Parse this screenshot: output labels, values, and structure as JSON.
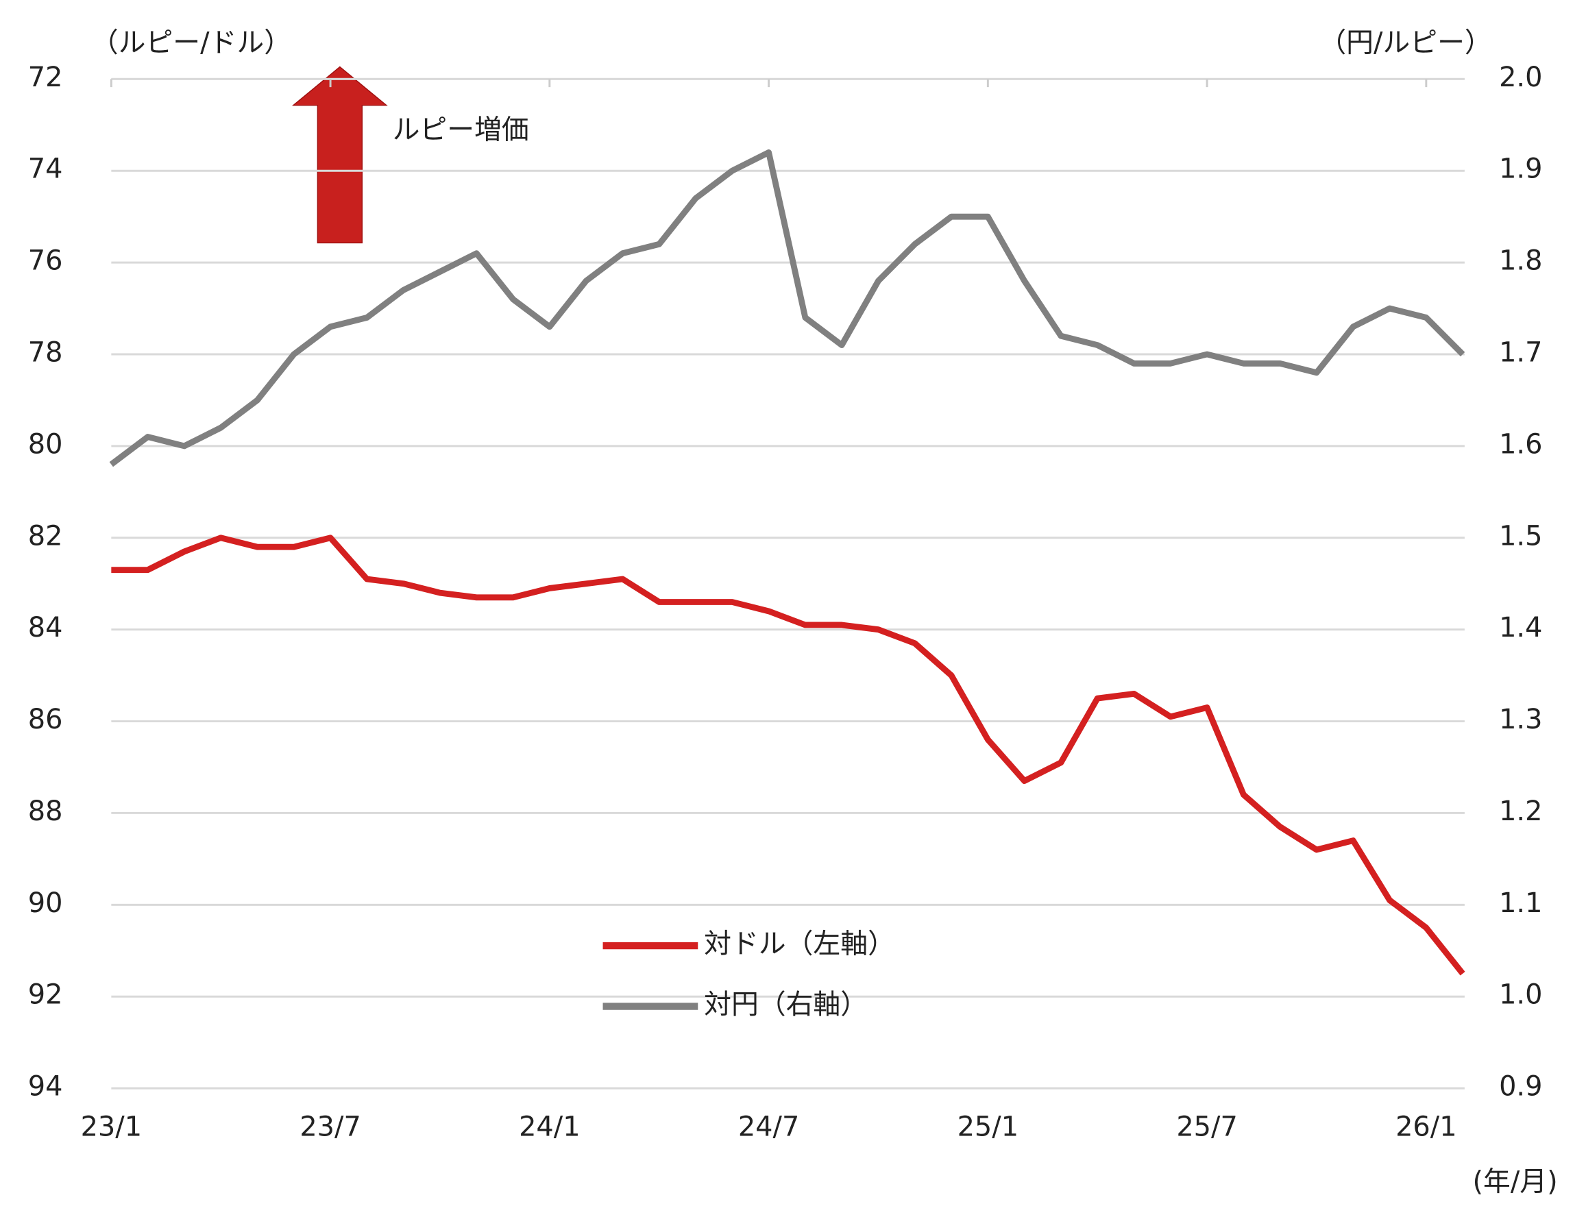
{
  "chart_data": {
    "type": "line",
    "y_label": "（ルピー/ドル）",
    "y2_label": "（円/ルピー）",
    "x_label": "(年/月)",
    "annotation": "ルピー増価",
    "x": [
      "23/1",
      "23/2",
      "23/3",
      "23/4",
      "23/5",
      "23/6",
      "23/7",
      "23/8",
      "23/9",
      "23/10",
      "23/11",
      "23/12",
      "24/1",
      "24/2",
      "24/3",
      "24/4",
      "24/5",
      "24/6",
      "24/7",
      "24/8",
      "24/9",
      "24/10",
      "24/11",
      "24/12",
      "25/1",
      "25/2",
      "25/3",
      "25/4",
      "25/5",
      "25/6",
      "25/7",
      "25/8",
      "25/9",
      "25/10",
      "25/11",
      "25/12",
      "26/1",
      "26/2"
    ],
    "xticks": [
      "23/1",
      "23/7",
      "24/1",
      "24/7",
      "25/1",
      "25/7",
      "26/1"
    ],
    "ylim": [
      94,
      72
    ],
    "y_inverted": true,
    "yticks": [
      72,
      74,
      76,
      78,
      80,
      82,
      84,
      86,
      88,
      90,
      92,
      94
    ],
    "y2lim": [
      0.9,
      2.0
    ],
    "y2ticks": [
      0.9,
      {
        "value": 1,
        "label": "1.0"
      },
      1.1,
      1.2,
      1.3,
      1.4,
      1.5,
      1.6,
      1.7,
      1.8,
      1.9,
      {
        "value": 2,
        "label": "2.0"
      }
    ],
    "grid": true,
    "legend": "bottom-center",
    "series": [
      {
        "name": "対ドル（左軸）",
        "color": "#d42020",
        "axis": "y",
        "values": [
          82.7,
          82.7,
          82.3,
          82.0,
          82.2,
          82.2,
          82.0,
          82.9,
          83.0,
          83.2,
          83.3,
          83.3,
          83.1,
          83.0,
          82.9,
          83.4,
          83.4,
          83.4,
          83.6,
          83.9,
          83.9,
          84.0,
          84.3,
          85.0,
          86.4,
          87.3,
          86.9,
          85.5,
          85.4,
          85.9,
          85.7,
          87.6,
          88.3,
          88.8,
          88.6,
          89.9,
          90.5,
          91.5
        ]
      },
      {
        "name": "対円（右軸）",
        "color": "#808080",
        "axis": "y2",
        "values": [
          1.58,
          1.61,
          1.6,
          1.62,
          1.65,
          1.7,
          1.73,
          1.74,
          1.77,
          1.79,
          1.81,
          1.76,
          1.73,
          1.78,
          1.81,
          1.82,
          1.87,
          1.9,
          1.92,
          1.74,
          1.71,
          1.78,
          1.82,
          1.85,
          1.85,
          1.78,
          1.72,
          1.71,
          1.69,
          1.69,
          1.7,
          1.69,
          1.69,
          1.68,
          1.73,
          1.75,
          1.74,
          1.7
        ]
      }
    ]
  }
}
